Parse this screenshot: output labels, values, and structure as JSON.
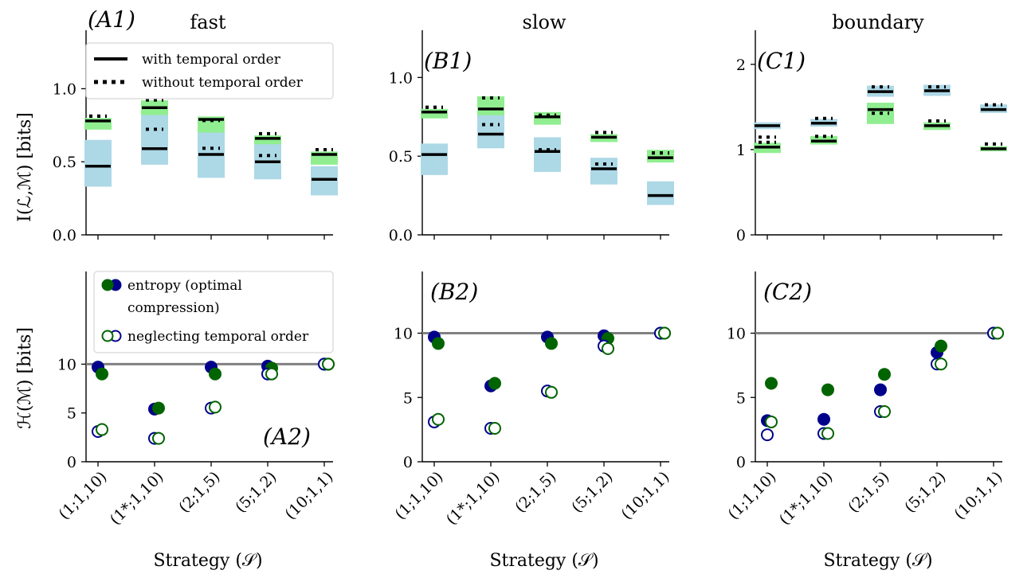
{
  "figure": {
    "col_titles": [
      "fast",
      "slow",
      "boundary"
    ],
    "xlabel": "Strategy (𝒮)",
    "ylabel_top": "I(ℒ,ℳ) [bits]",
    "ylabel_bottom": "ℋ(ℳ) [bits]",
    "legend_top": {
      "solid": "with temporal order",
      "dotted": "without temporal order"
    },
    "legend_bottom": {
      "filled": [
        "entropy (optimal",
        "compression)"
      ],
      "open": "neglecting temporal order"
    }
  },
  "colors": {
    "blue_band": "#add8e6",
    "green_band": "#90ee90",
    "navy": "#00008b",
    "green": "#006400",
    "ref_line": "#808080"
  },
  "chart_data": [
    {
      "panel": "A1",
      "tag": "(A1)",
      "type": "range",
      "categories": [
        "(1;1,10)",
        "(1*;1,10)",
        "(2;1,5)",
        "(5;1,2)",
        "(10;1,1)"
      ],
      "ylim": [
        0,
        1.4
      ],
      "yticks": [
        0.0,
        0.5,
        1.0
      ],
      "ytick_labels": [
        "0.0",
        "0.5",
        "1.0"
      ],
      "blue_band": [
        [
          0.33,
          0.65
        ],
        [
          0.48,
          0.92
        ],
        [
          0.39,
          0.78
        ],
        [
          0.38,
          0.66
        ],
        [
          0.27,
          0.47
        ]
      ],
      "green_band": [
        [
          0.72,
          0.8
        ],
        [
          0.82,
          0.92
        ],
        [
          0.7,
          0.81
        ],
        [
          0.62,
          0.68
        ],
        [
          0.48,
          0.57
        ]
      ],
      "with_order": [
        [
          0.47,
          0.78
        ],
        [
          0.59,
          0.87
        ],
        [
          0.55,
          0.79
        ],
        [
          0.5,
          0.66
        ],
        [
          0.38,
          0.55
        ]
      ],
      "without_order": [
        [
          0.78,
          0.78
        ],
        [
          0.69,
          0.89
        ],
        [
          0.75,
          0.56
        ],
        [
          0.66,
          0.51
        ],
        [
          0.55,
          0.55
        ]
      ]
    },
    {
      "panel": "B1",
      "tag": "(B1)",
      "type": "range",
      "categories": [
        "(1;1,10)",
        "(1*;1,10)",
        "(2;1,5)",
        "(5;1,2)",
        "(10;1,1)"
      ],
      "ylim": [
        0,
        1.3
      ],
      "yticks": [
        0.0,
        0.5,
        1.0
      ],
      "ytick_labels": [
        "0.0",
        "0.5",
        "1.0"
      ],
      "blue_band": [
        [
          0.38,
          0.58
        ],
        [
          0.55,
          0.82
        ],
        [
          0.4,
          0.62
        ],
        [
          0.32,
          0.49
        ],
        [
          0.19,
          0.34
        ]
      ],
      "green_band": [
        [
          0.74,
          0.8
        ],
        [
          0.76,
          0.88
        ],
        [
          0.7,
          0.78
        ],
        [
          0.59,
          0.64
        ],
        [
          0.46,
          0.54
        ]
      ],
      "with_order": [
        [
          0.51,
          0.78
        ],
        [
          0.64,
          0.8
        ],
        [
          0.53,
          0.75
        ],
        [
          0.42,
          0.62
        ],
        [
          0.25,
          0.49
        ]
      ],
      "without_order": [
        [
          0.78,
          0.78
        ],
        [
          0.67,
          0.84
        ],
        [
          0.73,
          0.51
        ],
        [
          0.62,
          0.42
        ],
        [
          0.49,
          0.49
        ]
      ]
    },
    {
      "panel": "C1",
      "tag": "(C1)",
      "type": "range",
      "categories": [
        "(1;1,10)",
        "(1*;1,10)",
        "(2;1,5)",
        "(5;1,2)",
        "(10;1,1)"
      ],
      "ylim": [
        0,
        2.4
      ],
      "yticks": [
        0,
        1,
        2
      ],
      "ytick_labels": [
        "0",
        "1",
        "2"
      ],
      "blue_band": [
        [
          1.24,
          1.32
        ],
        [
          1.27,
          1.36
        ],
        [
          1.62,
          1.75
        ],
        [
          1.63,
          1.76
        ],
        [
          1.43,
          1.53
        ]
      ],
      "green_band": [
        [
          0.96,
          1.08
        ],
        [
          1.06,
          1.16
        ],
        [
          1.3,
          1.55
        ],
        [
          1.23,
          1.32
        ],
        [
          0.98,
          1.04
        ]
      ],
      "with_order": [
        [
          1.28,
          1.03
        ],
        [
          1.31,
          1.1
        ],
        [
          1.68,
          1.47
        ],
        [
          1.69,
          1.28
        ],
        [
          1.47,
          1.01
        ]
      ],
      "without_order": [
        [
          1.09,
          1.03
        ],
        [
          1.1,
          1.31
        ],
        [
          1.37,
          1.68
        ],
        [
          1.28,
          1.68
        ],
        [
          1.01,
          1.47
        ]
      ]
    },
    {
      "panel": "A2",
      "tag": "(A2)",
      "type": "scatter",
      "categories": [
        "(1;1,10)",
        "(1*;1,10)",
        "(2;1,5)",
        "(5;1,2)",
        "(10;1,1)"
      ],
      "ylim": [
        0,
        19.5
      ],
      "yticks": [
        0,
        5,
        10
      ],
      "ytick_labels": [
        "0",
        "5",
        "10"
      ],
      "reference_line": 10,
      "series": [
        {
          "name": "entropy (optimal compression)",
          "marker": "filled",
          "navy": [
            9.7,
            5.4,
            9.7,
            9.8,
            10.0
          ],
          "green": [
            9.0,
            5.5,
            9.0,
            9.6,
            10.0
          ]
        },
        {
          "name": "neglecting temporal order",
          "marker": "open",
          "navy": [
            3.1,
            2.4,
            5.5,
            9.0,
            10.0
          ],
          "green": [
            3.3,
            2.4,
            5.6,
            9.0,
            10.0
          ]
        }
      ]
    },
    {
      "panel": "B2",
      "tag": "(B2)",
      "type": "scatter",
      "categories": [
        "(1;1,10)",
        "(1*;1,10)",
        "(2;1,5)",
        "(5;1,2)",
        "(10;1,1)"
      ],
      "ylim": [
        0,
        14.8
      ],
      "yticks": [
        0,
        5,
        10
      ],
      "ytick_labels": [
        "0",
        "5",
        "10"
      ],
      "reference_line": 10,
      "series": [
        {
          "name": "entropy (optimal compression)",
          "marker": "filled",
          "navy": [
            9.7,
            5.9,
            9.7,
            9.8,
            10.0
          ],
          "green": [
            9.2,
            6.1,
            9.2,
            9.6,
            10.0
          ]
        },
        {
          "name": "neglecting temporal order",
          "marker": "open",
          "navy": [
            3.1,
            2.6,
            5.5,
            9.0,
            10.0
          ],
          "green": [
            3.3,
            2.6,
            5.4,
            8.8,
            10.0
          ]
        }
      ]
    },
    {
      "panel": "C2",
      "tag": "(C2)",
      "type": "scatter",
      "categories": [
        "(1;1,10)",
        "(1*;1,10)",
        "(2;1,5)",
        "(5;1,2)",
        "(10;1,1)"
      ],
      "ylim": [
        0,
        14.8
      ],
      "yticks": [
        0,
        5,
        10
      ],
      "ytick_labels": [
        "0",
        "5",
        "10"
      ],
      "reference_line": 10,
      "series": [
        {
          "name": "entropy (optimal compression)",
          "marker": "filled",
          "navy": [
            3.2,
            3.3,
            5.6,
            8.5,
            10.0
          ],
          "green": [
            6.1,
            5.6,
            6.8,
            9.0,
            10.0
          ]
        },
        {
          "name": "neglecting temporal order",
          "marker": "open",
          "navy": [
            2.1,
            2.2,
            3.9,
            7.6,
            10.0
          ],
          "green": [
            3.1,
            2.2,
            3.9,
            7.6,
            10.0
          ]
        }
      ]
    }
  ]
}
